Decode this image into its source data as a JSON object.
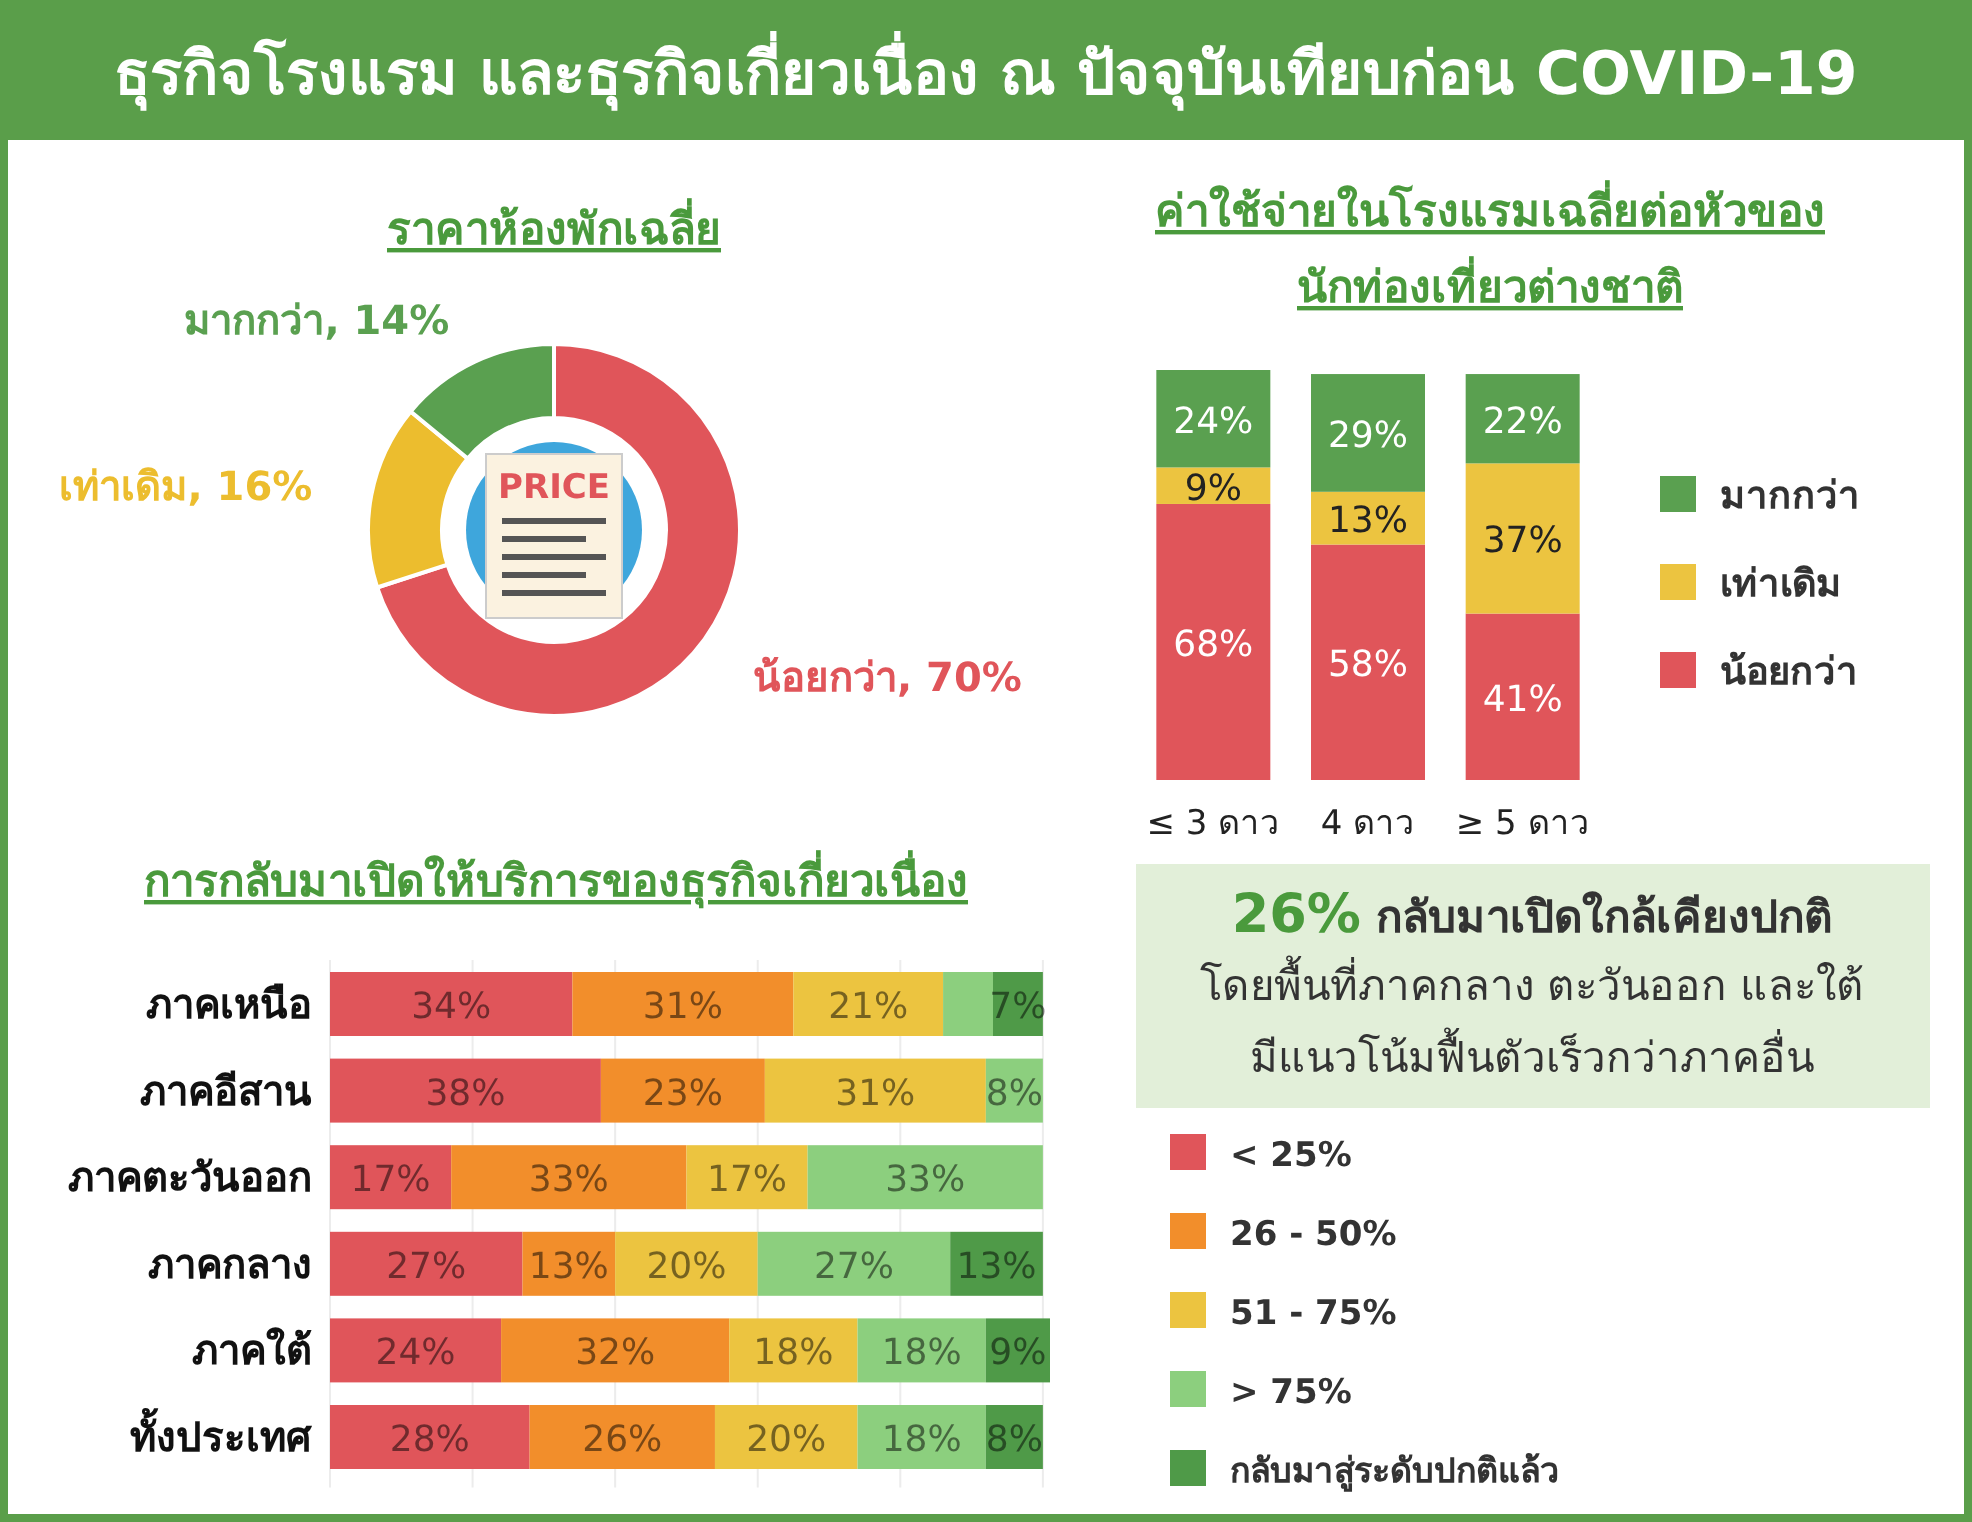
{
  "chart_data": [
    {
      "type": "other",
      "title": "ธุรกิจโรงแรม และธุรกิจเกี่ยวเนื่อง ณ ปัจจุบันเทียบก่อน COVID-19"
    },
    {
      "type": "donut",
      "title": "ราคาห้องพักเฉลี่ย",
      "categories": [
        "น้อยกว่า",
        "เท่าเดิม",
        "มากกว่า"
      ],
      "values": [
        70,
        16,
        14
      ],
      "colors": [
        "#e0555a",
        "#ecbd2e",
        "#5aa050"
      ],
      "value_labels": [
        "70%",
        "16%",
        "14%"
      ],
      "annotations": [
        "PRICE"
      ]
    },
    {
      "type": "bar",
      "stacked": true,
      "title": "ค่าใช้จ่ายในโรงแรมเฉลี่ยต่อหัวของ\nนักท่องเที่ยวต่างชาติ",
      "categories": [
        "≤ 3 ดาว",
        "4 ดาว",
        "≥ 5 ดาว"
      ],
      "ylim": [
        0,
        101
      ],
      "legend": "right",
      "series": [
        {
          "name": "น้อยกว่า",
          "color": "#e0555a",
          "values": [
            68,
            58,
            41
          ],
          "value_labels": [
            "68%",
            "58%",
            "41%"
          ]
        },
        {
          "name": "เท่าเดิม",
          "color": "#ecc440",
          "values": [
            9,
            13,
            37
          ],
          "value_labels": [
            "9%",
            "13%",
            "37%"
          ]
        },
        {
          "name": "มากกว่า",
          "color": "#5aa050",
          "values": [
            24,
            29,
            22
          ],
          "value_labels": [
            "24%",
            "29%",
            "22%"
          ]
        }
      ]
    },
    {
      "type": "bar",
      "stacked": true,
      "orientation": "horizontal",
      "title": "การกลับมาเปิดให้บริการของธุรกิจเกี่ยวเนื่อง",
      "categories": [
        "ภาคเหนือ",
        "ภาคอีสาน",
        "ภาคตะวันออก",
        "ภาคกลาง",
        "ภาคใต้",
        "ทั้งประเทศ"
      ],
      "xlim": [
        0,
        101
      ],
      "xticks": [
        {
          "value": 0,
          "label": null
        },
        {
          "value": 20,
          "label": null
        },
        {
          "value": 40,
          "label": null
        },
        {
          "value": 60,
          "label": null
        },
        {
          "value": 80,
          "label": null
        },
        {
          "value": 100,
          "label": null
        }
      ],
      "grid": "x",
      "legend": "right",
      "series": [
        {
          "name": "< 25%",
          "color": "#e0555a",
          "values": [
            34,
            38,
            17,
            27,
            24,
            28
          ],
          "value_labels": [
            "34%",
            "38%",
            "17%",
            "27%",
            "24%",
            "28%"
          ]
        },
        {
          "name": "26 - 50%",
          "color": "#f28e2b",
          "values": [
            31,
            23,
            33,
            13,
            32,
            26
          ],
          "value_labels": [
            "31%",
            "23%",
            "33%",
            "13%",
            "32%",
            "26%"
          ]
        },
        {
          "name": "51 - 75%",
          "color": "#ecc440",
          "values": [
            21,
            31,
            17,
            20,
            18,
            20
          ],
          "value_labels": [
            "21%",
            "31%",
            "17%",
            "20%",
            "18%",
            "20%"
          ]
        },
        {
          "name": "> 75%",
          "color": "#8ccf7e",
          "values": [
            7,
            8,
            33,
            27,
            18,
            18
          ],
          "value_labels": [
            null,
            "8%",
            "33%",
            "27%",
            "18%",
            "18%"
          ]
        },
        {
          "name": "กลับมาสู่ระดับปกติแล้ว",
          "color": "#4f9a48",
          "values": [
            7,
            null,
            null,
            13,
            9,
            8
          ],
          "value_labels": [
            "7%",
            null,
            null,
            "13%",
            "9%",
            "8%"
          ]
        }
      ]
    },
    {
      "type": "other",
      "title": "26% กลับมาเปิดใกล้เคียงปกติ",
      "annotations": [
        "โดยพื้นที่ภาคกลาง ตะวันออก และใต้",
        "มีแนวโน้มฟื้นตัวเร็วกว่าภาคอื่น"
      ]
    }
  ]
}
